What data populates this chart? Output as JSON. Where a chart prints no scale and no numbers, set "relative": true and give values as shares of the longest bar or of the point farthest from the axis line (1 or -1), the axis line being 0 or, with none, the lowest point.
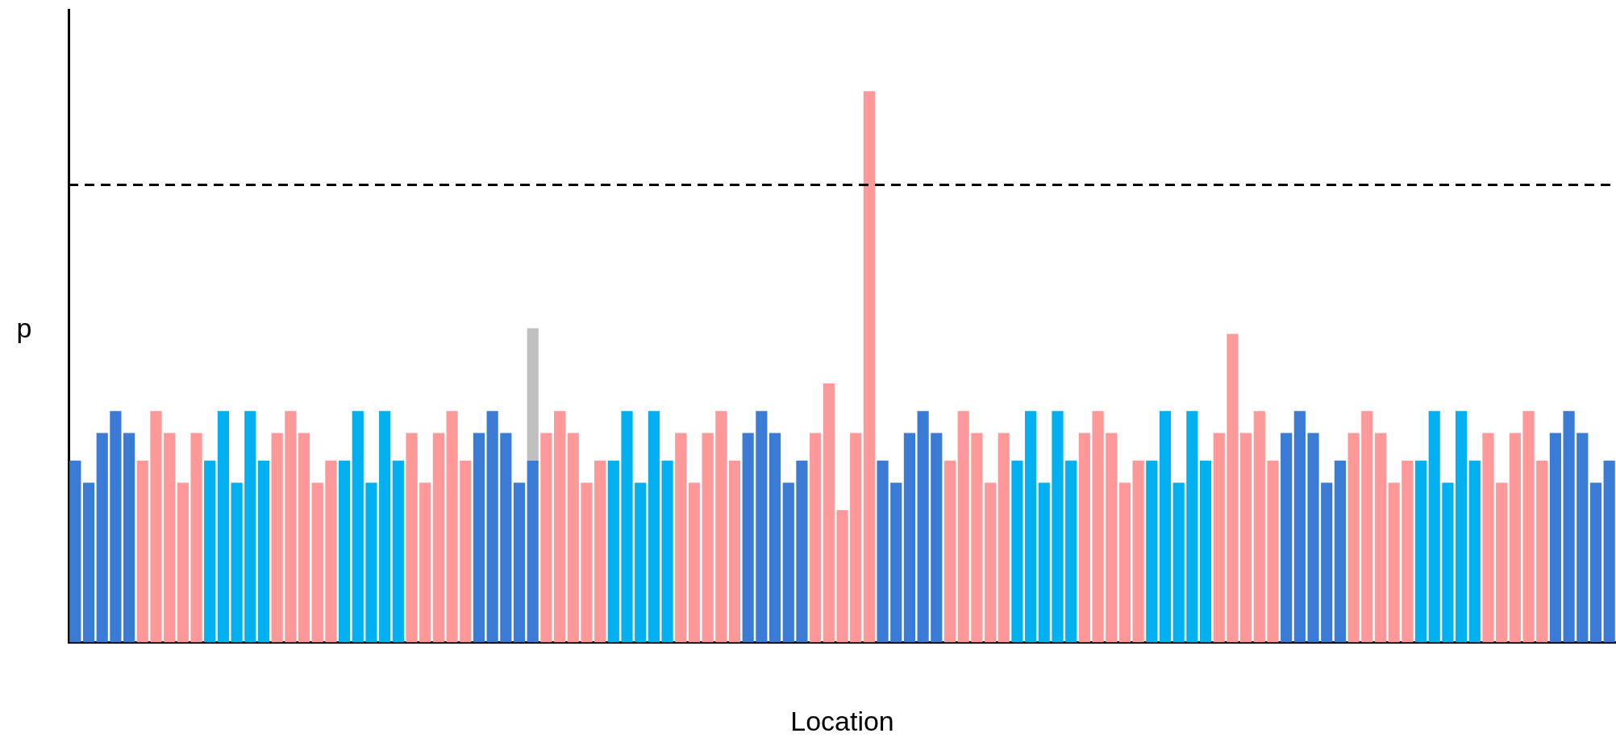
{
  "chart_data": {
    "type": "bar",
    "relative": true,
    "stacked": true,
    "xlabel": "Location",
    "ylabel": "p",
    "legend": false,
    "grid": false,
    "categories": [
      null,
      null,
      null,
      null,
      null,
      null,
      null,
      null,
      null,
      null,
      null,
      null,
      null,
      null,
      null,
      null,
      null,
      null,
      null,
      null,
      null,
      null,
      null,
      null,
      null,
      null,
      null,
      null,
      null,
      null,
      null,
      null,
      null,
      null,
      null,
      null,
      null,
      null,
      null,
      null,
      null,
      null,
      null,
      null,
      null,
      null,
      null,
      null,
      null,
      null,
      null,
      null,
      null,
      null,
      null,
      null,
      null,
      null,
      null,
      null,
      null,
      null,
      null,
      null,
      null,
      null,
      null,
      null,
      null,
      null,
      null,
      null,
      null,
      null,
      null,
      null,
      null,
      null,
      null,
      null,
      null,
      null,
      null,
      null,
      null,
      null,
      null,
      null,
      null,
      null,
      null,
      null,
      null,
      null,
      null,
      null,
      null,
      null,
      null,
      null,
      null,
      null,
      null,
      null,
      null,
      null,
      null,
      null,
      null,
      null,
      null,
      null,
      null,
      null,
      null
    ],
    "series": [
      {
        "values": [
          0.33,
          0.29,
          0.38,
          0.42,
          0.38,
          0.33,
          0.42,
          0.38,
          0.29,
          0.38,
          0.33,
          0.42,
          0.29,
          0.42,
          0.33,
          0.38,
          0.42,
          0.38,
          0.29,
          0.33,
          0.33,
          0.42,
          0.29,
          0.42,
          0.33,
          0.38,
          0.29,
          0.38,
          0.42,
          0.33,
          0.38,
          0.42,
          0.38,
          0.29,
          0.33,
          0.38,
          0.42,
          0.38,
          0.29,
          0.33,
          0.33,
          0.42,
          0.29,
          0.42,
          0.33,
          0.38,
          0.29,
          0.38,
          0.42,
          0.33,
          0.38,
          0.42,
          0.38,
          0.29,
          0.33,
          0.38,
          0.47,
          0.24,
          0.38,
          1,
          0.33,
          0.29,
          0.38,
          0.42,
          0.38,
          0.33,
          0.42,
          0.38,
          0.29,
          0.38,
          0.33,
          0.42,
          0.29,
          0.42,
          0.33,
          0.38,
          0.42,
          0.38,
          0.29,
          0.33,
          0.33,
          0.42,
          0.29,
          0.42,
          0.33,
          0.38,
          0.56,
          0.38,
          0.42,
          0.33,
          0.38,
          0.42,
          0.38,
          0.29,
          0.33,
          0.38,
          0.42,
          0.38,
          0.29,
          0.33,
          0.33,
          0.42,
          0.29,
          0.42,
          0.33,
          0.38,
          0.29,
          0.38,
          0.42,
          0.33,
          0.38,
          0.42,
          0.38,
          0.29,
          0.33
        ],
        "colors": [
          "#3a7bd5",
          "#3a7bd5",
          "#3a7bd5",
          "#3a7bd5",
          "#3a7bd5",
          "#ff9999",
          "#ff9999",
          "#ff9999",
          "#ff9999",
          "#ff9999",
          "#00b0f0",
          "#00b0f0",
          "#00b0f0",
          "#00b0f0",
          "#00b0f0",
          "#ff9999",
          "#ff9999",
          "#ff9999",
          "#ff9999",
          "#ff9999",
          "#00b0f0",
          "#00b0f0",
          "#00b0f0",
          "#00b0f0",
          "#00b0f0",
          "#ff9999",
          "#ff9999",
          "#ff9999",
          "#ff9999",
          "#ff9999",
          "#3a7bd5",
          "#3a7bd5",
          "#3a7bd5",
          "#3a7bd5",
          "#3a7bd5",
          "#ff9999",
          "#ff9999",
          "#ff9999",
          "#ff9999",
          "#ff9999",
          "#00b0f0",
          "#00b0f0",
          "#00b0f0",
          "#00b0f0",
          "#00b0f0",
          "#ff9999",
          "#ff9999",
          "#ff9999",
          "#ff9999",
          "#ff9999",
          "#3a7bd5",
          "#3a7bd5",
          "#3a7bd5",
          "#3a7bd5",
          "#3a7bd5",
          "#ff9999",
          "#ff9999",
          "#ff9999",
          "#ff9999",
          "#ff9999",
          "#3a7bd5",
          "#3a7bd5",
          "#3a7bd5",
          "#3a7bd5",
          "#3a7bd5",
          "#ff9999",
          "#ff9999",
          "#ff9999",
          "#ff9999",
          "#ff9999",
          "#00b0f0",
          "#00b0f0",
          "#00b0f0",
          "#00b0f0",
          "#00b0f0",
          "#ff9999",
          "#ff9999",
          "#ff9999",
          "#ff9999",
          "#ff9999",
          "#00b0f0",
          "#00b0f0",
          "#00b0f0",
          "#00b0f0",
          "#00b0f0",
          "#ff9999",
          "#ff9999",
          "#ff9999",
          "#ff9999",
          "#ff9999",
          "#3a7bd5",
          "#3a7bd5",
          "#3a7bd5",
          "#3a7bd5",
          "#3a7bd5",
          "#ff9999",
          "#ff9999",
          "#ff9999",
          "#ff9999",
          "#ff9999",
          "#00b0f0",
          "#00b0f0",
          "#00b0f0",
          "#00b0f0",
          "#00b0f0",
          "#ff9999",
          "#ff9999",
          "#ff9999",
          "#ff9999",
          "#ff9999",
          "#3a7bd5",
          "#3a7bd5",
          "#3a7bd5",
          "#3a7bd5",
          "#3a7bd5"
        ]
      },
      {
        "color": "#c0c0c0",
        "values": [
          null,
          null,
          null,
          null,
          null,
          null,
          null,
          null,
          null,
          null,
          null,
          null,
          null,
          null,
          null,
          null,
          null,
          null,
          null,
          null,
          null,
          null,
          null,
          null,
          null,
          null,
          null,
          null,
          null,
          null,
          null,
          null,
          null,
          null,
          0.24,
          null,
          null,
          null,
          null,
          null,
          null,
          null,
          null,
          null,
          null,
          null,
          null,
          null,
          null,
          null,
          null,
          null,
          null,
          null,
          null,
          null,
          null,
          null,
          null,
          null,
          null,
          null,
          null,
          null,
          null,
          null,
          null,
          null,
          null,
          null,
          null,
          null,
          null,
          null,
          null,
          null,
          null,
          null,
          null,
          null,
          null,
          null,
          null,
          null,
          null,
          null,
          null,
          null,
          null,
          null,
          null,
          null,
          null,
          null,
          null,
          null,
          null,
          null,
          null,
          null,
          null,
          null,
          null,
          null,
          null,
          null,
          null,
          null,
          null,
          null,
          null,
          null,
          null,
          null,
          null
        ]
      }
    ],
    "ref_lines": [
      {
        "axis": "y",
        "value": 0.83,
        "color": "#000000",
        "line_style": "dashed"
      }
    ]
  }
}
